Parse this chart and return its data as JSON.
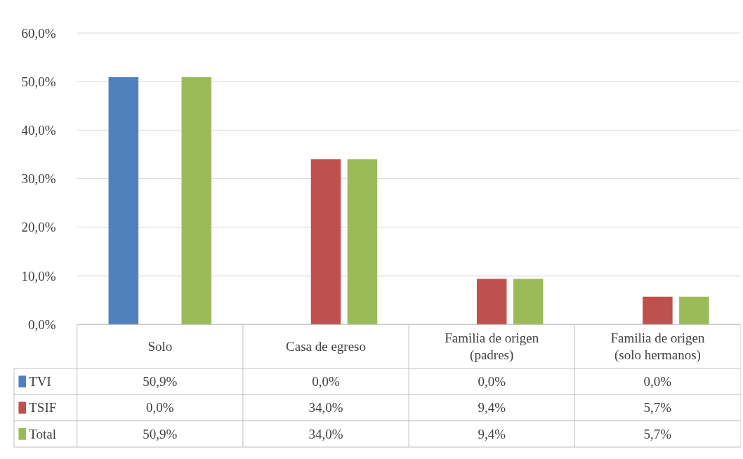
{
  "chart_data": {
    "type": "bar",
    "categories": [
      "Solo",
      "Casa de egreso",
      "Familia de origen (padres)",
      "Familia de origen (solo hermanos)"
    ],
    "series": [
      {
        "name": "TVI",
        "color": "#4f81bd",
        "values": [
          50.9,
          0.0,
          0.0,
          0.0
        ],
        "value_labels": [
          "50,9%",
          "0,0%",
          "0,0%",
          "0,0%"
        ]
      },
      {
        "name": "TSIF",
        "color": "#c0504d",
        "values": [
          0.0,
          34.0,
          9.4,
          5.7
        ],
        "value_labels": [
          "0,0%",
          "34,0%",
          "9,4%",
          "5,7%"
        ]
      },
      {
        "name": "Total",
        "color": "#9bbb59",
        "values": [
          50.9,
          34.0,
          9.4,
          5.7
        ],
        "value_labels": [
          "50,9%",
          "34,0%",
          "9,4%",
          "5,7%"
        ]
      }
    ],
    "ylim": [
      0,
      60
    ],
    "yticks": [
      {
        "value": 0,
        "label": "0,0%"
      },
      {
        "value": 10,
        "label": "10,0%"
      },
      {
        "value": 20,
        "label": "20,0%"
      },
      {
        "value": 30,
        "label": "30,0%"
      },
      {
        "value": 40,
        "label": "40,0%"
      },
      {
        "value": 50,
        "label": "50,0%"
      },
      {
        "value": 60,
        "label": "60,0%"
      }
    ],
    "grid": "y",
    "legend": "bottom"
  }
}
